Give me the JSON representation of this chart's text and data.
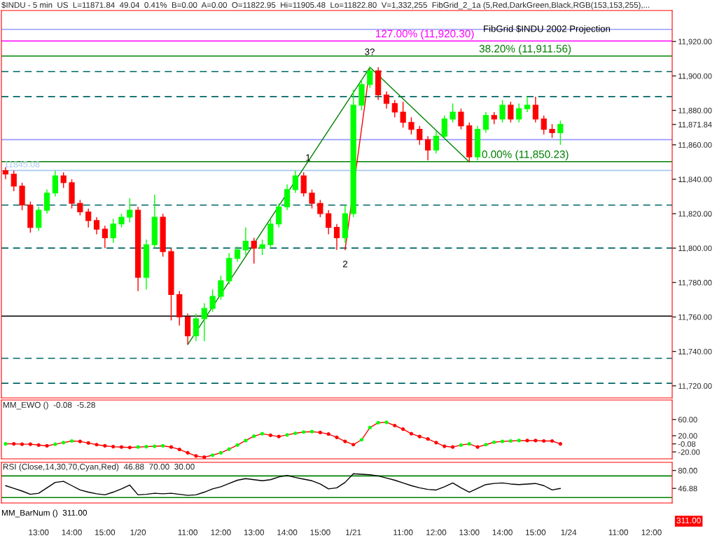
{
  "chart_data": [
    {
      "type": "candlestick",
      "title": "$INDU - 5 min  US  L=11871.84  49.04  0.41%  B=0.00  A=0.00  O=11822.95  Hi=11905.48  Lo=11822.80  V=1,332,255  FibGrid_2_1a (5,Red,DarkGreen,Black,RGB(153,153,255),...",
      "categories": [
        null,
        null,
        null,
        null,
        null,
        null,
        null,
        null,
        null,
        null,
        null,
        null,
        null,
        null,
        null,
        null,
        null,
        null,
        null,
        null,
        null,
        null,
        null,
        null,
        null,
        null,
        null,
        null,
        null,
        null,
        null,
        null,
        null,
        null,
        null,
        null,
        null,
        null,
        null,
        null,
        null,
        null,
        null,
        null,
        null,
        null,
        null,
        null,
        null,
        null,
        null,
        null,
        null,
        null,
        null,
        null,
        null,
        null,
        null,
        null,
        null,
        null,
        null,
        null,
        null,
        null,
        null,
        null,
        null,
        null,
        null,
        null,
        null,
        null,
        null,
        null,
        null,
        null,
        null,
        null,
        null
      ],
      "ohlc": [
        [
          11845,
          11847,
          11840,
          11843
        ],
        [
          11843,
          11845,
          11833,
          11836
        ],
        [
          11836,
          11838,
          11822,
          11825
        ],
        [
          11825,
          11827,
          11809,
          11812
        ],
        [
          11812,
          11824,
          11810,
          11822
        ],
        [
          11822,
          11834,
          11820,
          11832
        ],
        [
          11832,
          11845,
          11830,
          11842
        ],
        [
          11842,
          11844,
          11835,
          11838
        ],
        [
          11838,
          11840,
          11823,
          11826
        ],
        [
          11826,
          11828,
          11819,
          11821
        ],
        [
          11821,
          11823,
          11812,
          11816
        ],
        [
          11816,
          11818,
          11808,
          11811
        ],
        [
          11811,
          11813,
          11800,
          11806
        ],
        [
          11806,
          11817,
          11803,
          11814
        ],
        [
          11814,
          11820,
          11812,
          11818
        ],
        [
          11818,
          11829,
          11815,
          11822
        ],
        [
          11822,
          11824,
          11775,
          11783
        ],
        [
          11783,
          11805,
          11776,
          11802
        ],
        [
          11802,
          11831,
          11800,
          11818
        ],
        [
          11818,
          11820,
          11795,
          11798
        ],
        [
          11798,
          11800,
          11758,
          11773
        ],
        [
          11773,
          11775,
          11755,
          11760
        ],
        [
          11760,
          11762,
          11744,
          11749
        ],
        [
          11749,
          11762,
          11746,
          11759
        ],
        [
          11759,
          11768,
          11746,
          11765
        ],
        [
          11765,
          11776,
          11763,
          11772
        ],
        [
          11772,
          11784,
          11770,
          11781
        ],
        [
          11781,
          11797,
          11779,
          11794
        ],
        [
          11794,
          11801,
          11792,
          11799
        ],
        [
          11799,
          11812,
          11796,
          11804
        ],
        [
          11804,
          11806,
          11791,
          11800
        ],
        [
          11800,
          11805,
          11796,
          11802
        ],
        [
          11802,
          11817,
          11800,
          11814
        ],
        [
          11814,
          11826,
          11812,
          11824
        ],
        [
          11824,
          11837,
          11822,
          11834
        ],
        [
          11834,
          11845,
          11832,
          11842
        ],
        [
          11842,
          11844,
          11830,
          11832
        ],
        [
          11832,
          11834,
          11823,
          11826
        ],
        [
          11826,
          11828,
          11818,
          11820
        ],
        [
          11820,
          11822,
          11808,
          11812
        ],
        [
          11812,
          11814,
          11799,
          11806
        ],
        [
          11806,
          11825,
          11803,
          11820
        ],
        [
          11820,
          11892,
          11818,
          11883
        ],
        [
          11883,
          11898,
          11880,
          11895
        ],
        [
          11895,
          11905.48,
          11893,
          11903
        ],
        [
          11903,
          11905,
          11886,
          11889
        ],
        [
          11889,
          11891,
          11881,
          11884
        ],
        [
          11884,
          11886,
          11876,
          11879
        ],
        [
          11879,
          11885,
          11870,
          11873
        ],
        [
          11873,
          11876,
          11866,
          11869
        ],
        [
          11869,
          11871,
          11860,
          11863
        ],
        [
          11863,
          11865,
          11851,
          11857
        ],
        [
          11857,
          11868,
          11855,
          11865
        ],
        [
          11865,
          11877,
          11863,
          11875
        ],
        [
          11875,
          11884,
          11873,
          11879
        ],
        [
          11879,
          11881,
          11869,
          11871
        ],
        [
          11871,
          11873,
          11850.23,
          11853
        ],
        [
          11853,
          11871,
          11851,
          11869
        ],
        [
          11869,
          11879,
          11867,
          11877
        ],
        [
          11877,
          11879,
          11872,
          11875
        ],
        [
          11875,
          11886,
          11873,
          11883
        ],
        [
          11883,
          11885,
          11873,
          11875
        ],
        [
          11875,
          11884,
          11873,
          11881
        ],
        [
          11881,
          11888,
          11879,
          11883
        ],
        [
          11883,
          11888,
          11873,
          11875
        ],
        [
          11875,
          11877,
          11866,
          11869
        ],
        [
          11869,
          11872,
          11864,
          11867
        ],
        [
          11867,
          11874,
          11860,
          11871.84
        ],
        null,
        null,
        null,
        null,
        null,
        null,
        null,
        null,
        null,
        null,
        null,
        null,
        null
      ],
      "colors": [
        "#ff0000",
        "#ff0000",
        "#ff0000",
        "#ff0000",
        "#00ff00",
        "#00ff00",
        "#00ff00",
        "#ff0000",
        "#ff0000",
        "#ff0000",
        "#ff0000",
        "#ff0000",
        "#ff0000",
        "#00ff00",
        "#00ff00",
        "#00ff00",
        "#ff0000",
        "#00ff00",
        "#00ff00",
        "#ff0000",
        "#ff0000",
        "#ff0000",
        "#ff0000",
        "#00ff00",
        "#00ff00",
        "#00ff00",
        "#00ff00",
        "#00ff00",
        "#00ff00",
        "#00ff00",
        "#ff0000",
        "#00ff00",
        "#00ff00",
        "#00ff00",
        "#00ff00",
        "#00ff00",
        "#ff0000",
        "#ff0000",
        "#ff0000",
        "#ff0000",
        "#ff0000",
        "#00ff00",
        "#00ff00",
        "#00ff00",
        "#00ff00",
        "#ff0000",
        "#ff0000",
        "#ff0000",
        "#ff0000",
        "#ff0000",
        "#ff0000",
        "#ff0000",
        "#00ff00",
        "#00ff00",
        "#00ff00",
        "#ff0000",
        "#ff0000",
        "#00ff00",
        "#00ff00",
        "#ff0000",
        "#00ff00",
        "#ff0000",
        "#00ff00",
        "#00ff00",
        "#ff0000",
        "#ff0000",
        "#ff0000",
        "#00ff00",
        null,
        null,
        null,
        null,
        null,
        null,
        null,
        null,
        null,
        null,
        null,
        null,
        null
      ],
      "series": [
        {
          "type": "line",
          "color": "#008000",
          "values": [
            null,
            null,
            null,
            null,
            null,
            null,
            null,
            null,
            null,
            null,
            null,
            null,
            null,
            null,
            null,
            null,
            null,
            null,
            null,
            null,
            null,
            null,
            11744,
            null,
            null,
            null,
            null,
            null,
            null,
            null,
            null,
            null,
            null,
            null,
            null,
            null,
            null,
            null,
            null,
            null,
            null,
            null,
            null,
            null,
            11905,
            null,
            null,
            null,
            null,
            null,
            null,
            null,
            null,
            null,
            null,
            null,
            11850,
            null,
            null,
            null,
            null,
            null,
            null,
            null,
            null,
            null,
            null,
            null,
            null,
            null,
            null,
            null,
            null,
            null,
            null,
            null,
            null,
            null,
            null,
            null,
            null
          ]
        },
        {
          "type": "line",
          "color": "#ff0000",
          "values": [
            null,
            null,
            null,
            null,
            null,
            null,
            null,
            null,
            null,
            null,
            null,
            null,
            null,
            null,
            null,
            null,
            null,
            null,
            null,
            null,
            null,
            null,
            null,
            null,
            null,
            null,
            null,
            null,
            null,
            null,
            null,
            null,
            null,
            null,
            null,
            null,
            null,
            null,
            null,
            null,
            null,
            11799,
            null,
            null,
            11905,
            null,
            null,
            null,
            null,
            null,
            null,
            null,
            null,
            null,
            null,
            null,
            null,
            null,
            null,
            null,
            null,
            null,
            null,
            null,
            null,
            null,
            null,
            null,
            null,
            null,
            null,
            null,
            null,
            null,
            null,
            null,
            null,
            null,
            null,
            null,
            null
          ]
        }
      ],
      "ylim": [
        11713,
        11938
      ],
      "yticks": [
        {
          "value": 11720,
          "label": "11,720.00"
        },
        {
          "value": 11740,
          "label": "11,740.00"
        },
        {
          "value": 11760,
          "label": "11,760.00"
        },
        {
          "value": 11780,
          "label": "11,780.00"
        },
        {
          "value": 11800,
          "label": "11,800.00"
        },
        {
          "value": 11820,
          "label": "11,820.00"
        },
        {
          "value": 11840,
          "label": "11,840.00"
        },
        {
          "value": 11860,
          "label": "11,860.00"
        },
        {
          "value": 11871.84,
          "label": "11,871.84"
        },
        {
          "value": 11880,
          "label": "11,880.00"
        },
        {
          "value": 11900,
          "label": "11,900.00"
        },
        {
          "value": 11920,
          "label": "11,920.00"
        }
      ],
      "tick_labels": "y",
      "ref_lines": [
        {
          "axis": "y",
          "value": 11920.3,
          "label": "127.00% (11,920.30)",
          "color": "#ff00ff",
          "line_style": "solid"
        },
        {
          "axis": "y",
          "value": 11911.56,
          "label": "38.20% (11,911.56)",
          "color": "#008000",
          "line_style": "solid"
        },
        {
          "axis": "y",
          "value": 11850.23,
          "label": "0.00% (11,850.23)",
          "color": "#008000",
          "line_style": "solid"
        },
        {
          "axis": "y",
          "value": 11845.08,
          "label": "11845.08",
          "color": "#a6caf0",
          "line_style": "solid"
        },
        {
          "axis": "y",
          "value": 11927,
          "color": "#9999ff",
          "line_style": "solid"
        },
        {
          "axis": "y",
          "value": 11863,
          "color": "#9999ff",
          "line_style": "solid"
        },
        {
          "axis": "y",
          "value": 11902.5,
          "color": "#006666",
          "line_style": "dashed"
        },
        {
          "axis": "y",
          "value": 11888,
          "color": "#006666",
          "line_style": "dashed"
        },
        {
          "axis": "y",
          "value": 11825,
          "color": "#006666",
          "line_style": "dashed"
        },
        {
          "axis": "y",
          "value": 11800,
          "color": "#006666",
          "line_style": "dashed"
        },
        {
          "axis": "y",
          "value": 11760.5,
          "color": "#000000",
          "line_style": "solid"
        },
        {
          "axis": "y",
          "value": 11736,
          "color": "#006666",
          "line_style": "dashed"
        },
        {
          "axis": "y",
          "value": 11721.5,
          "color": "#006666",
          "line_style": "dashed"
        }
      ],
      "annotations": [
        "FibGrid $INDU 2002 Projection",
        "1",
        "2",
        "3?"
      ],
      "grid": false,
      "legend": false
    },
    {
      "type": "line",
      "title": "MM_EWO ()  -0.08  -5.28",
      "categories": [
        null,
        null,
        null,
        null,
        null,
        null,
        null,
        null,
        null,
        null,
        null,
        null,
        null,
        null,
        null,
        null,
        null,
        null,
        null,
        null,
        null,
        null,
        null,
        null,
        null,
        null,
        null,
        null,
        null,
        null,
        null,
        null,
        null,
        null,
        null,
        null,
        null,
        null,
        null,
        null,
        null,
        null,
        null,
        null,
        null,
        null,
        null,
        null,
        null,
        null,
        null,
        null,
        null,
        null,
        null,
        null,
        null,
        null,
        null,
        null,
        null,
        null,
        null,
        null,
        null,
        null,
        null,
        null,
        null,
        null,
        null,
        null,
        null,
        null,
        null,
        null,
        null,
        null,
        null,
        null,
        null
      ],
      "series": [
        {
          "color": "#ff0000",
          "marker": "circle",
          "values": [
            0,
            0,
            -1,
            -1,
            -3,
            -5,
            -1,
            3,
            7,
            6,
            2,
            -2,
            -5,
            -7,
            -8,
            -9,
            -8,
            -7,
            -6,
            -5,
            -8,
            -14,
            -22,
            -30,
            -33,
            -28,
            -22,
            -13,
            -3,
            8,
            19,
            25,
            21,
            18,
            22,
            26,
            29,
            30,
            28,
            24,
            16,
            6,
            -2,
            10,
            40,
            52,
            53,
            45,
            36,
            25,
            18,
            12,
            3,
            -6,
            -8,
            -3,
            0,
            -8,
            -2,
            4,
            6,
            7,
            8,
            8,
            8,
            7,
            7,
            -0.08,
            null,
            null,
            null,
            null,
            null,
            null,
            null,
            null,
            null,
            null,
            null,
            null,
            null
          ],
          "colors": [
            "#00ff00",
            "#ff0000",
            "#ff0000",
            "#ff0000",
            "#ff0000",
            "#ff0000",
            "#00ff00",
            "#00ff00",
            "#00ff00",
            "#ff0000",
            "#ff0000",
            "#ff0000",
            "#ff0000",
            "#ff0000",
            "#ff0000",
            "#ff0000",
            "#00ff00",
            "#00ff00",
            "#00ff00",
            "#00ff00",
            "#ff0000",
            "#ff0000",
            "#ff0000",
            "#ff0000",
            "#ff0000",
            "#00ff00",
            "#00ff00",
            "#00ff00",
            "#00ff00",
            "#00ff00",
            "#00ff00",
            "#00ff00",
            "#ff0000",
            "#ff0000",
            "#00ff00",
            "#00ff00",
            "#00ff00",
            "#00ff00",
            "#ff0000",
            "#ff0000",
            "#ff0000",
            "#ff0000",
            "#ff0000",
            "#00ff00",
            "#00ff00",
            "#00ff00",
            "#00ff00",
            "#ff0000",
            "#ff0000",
            "#ff0000",
            "#ff0000",
            "#ff0000",
            "#ff0000",
            "#ff0000",
            "#ff0000",
            "#00ff00",
            "#00ff00",
            "#ff0000",
            "#00ff00",
            "#00ff00",
            "#00ff00",
            "#00ff00",
            "#00ff00",
            "#ff0000",
            "#ff0000",
            "#ff0000",
            "#ff0000",
            "#ff0000",
            null,
            null,
            null,
            null,
            null,
            null,
            null,
            null,
            null,
            null,
            null,
            null,
            null
          ]
        }
      ],
      "ylim": [
        -37,
        108
      ],
      "yticks": [
        {
          "value": -20,
          "label": "-20.00"
        },
        {
          "value": -0.08,
          "label": "-0.08"
        },
        {
          "value": 20,
          "label": "20.00"
        },
        {
          "value": 60,
          "label": "60.00"
        }
      ],
      "tick_labels": "y",
      "grid": false,
      "legend": false
    },
    {
      "type": "line",
      "title": "RSI (Close,14,30,70,Cyan,Red)  46.88  70.00  30.00",
      "categories": [
        null,
        null,
        null,
        null,
        "13:00",
        null,
        null,
        null,
        "14:00",
        null,
        null,
        null,
        "15:00",
        null,
        null,
        null,
        "1/20",
        null,
        null,
        null,
        null,
        null,
        "11:00",
        null,
        null,
        null,
        "12:00",
        null,
        null,
        null,
        "13:00",
        null,
        null,
        null,
        "14:00",
        null,
        null,
        null,
        "15:00",
        null,
        null,
        null,
        "1/21",
        null,
        null,
        null,
        null,
        null,
        "11:00",
        null,
        null,
        null,
        "12:00",
        null,
        null,
        null,
        "13:00",
        null,
        null,
        null,
        "14:00",
        null,
        null,
        null,
        "15:00",
        null,
        null,
        null,
        "1/24",
        null,
        null,
        null,
        null,
        null,
        "11:00",
        null,
        null,
        null,
        "12:00",
        null,
        null
      ],
      "series": [
        {
          "color": "#000000",
          "marker": "none",
          "values": [
            52,
            47,
            42,
            36,
            38,
            48,
            58,
            60,
            52,
            44,
            40,
            37,
            35,
            40,
            46,
            53,
            35,
            36,
            38,
            37,
            38,
            36,
            34,
            35,
            40,
            46,
            50,
            56,
            62,
            65,
            63,
            61,
            63,
            68,
            71,
            67,
            64,
            61,
            55,
            46,
            48,
            58,
            74,
            73,
            72,
            70,
            66,
            62,
            57,
            52,
            48,
            45,
            44,
            50,
            57,
            48,
            40,
            47,
            54,
            56,
            57,
            55,
            54,
            55,
            56,
            52,
            44,
            46.88,
            null,
            null,
            null,
            null,
            null,
            null,
            null,
            null,
            null,
            null,
            null,
            null,
            null
          ]
        }
      ],
      "ylim": [
        20,
        95
      ],
      "yticks": [
        {
          "value": 46.88,
          "label": "46.88"
        },
        {
          "value": 80,
          "label": "80.00"
        }
      ],
      "ref_lines": [
        {
          "axis": "y",
          "value": 70,
          "color": "#008000",
          "line_style": "solid"
        },
        {
          "axis": "y",
          "value": 30,
          "color": "#008000",
          "line_style": "solid"
        }
      ],
      "annotations": [
        "MM_BarNum ()  311.00",
        "311.00"
      ],
      "grid": false,
      "legend": false
    }
  ]
}
